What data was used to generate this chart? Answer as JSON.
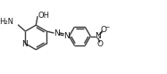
{
  "bg_color": "#ffffff",
  "line_color": "#3a3a3a",
  "text_color": "#1a1a1a",
  "line_width": 1.0,
  "font_size": 6.0,
  "figsize": [
    1.87,
    0.83
  ],
  "dpi": 100,
  "xlim": [
    0,
    187
  ],
  "ylim": [
    0,
    83
  ]
}
